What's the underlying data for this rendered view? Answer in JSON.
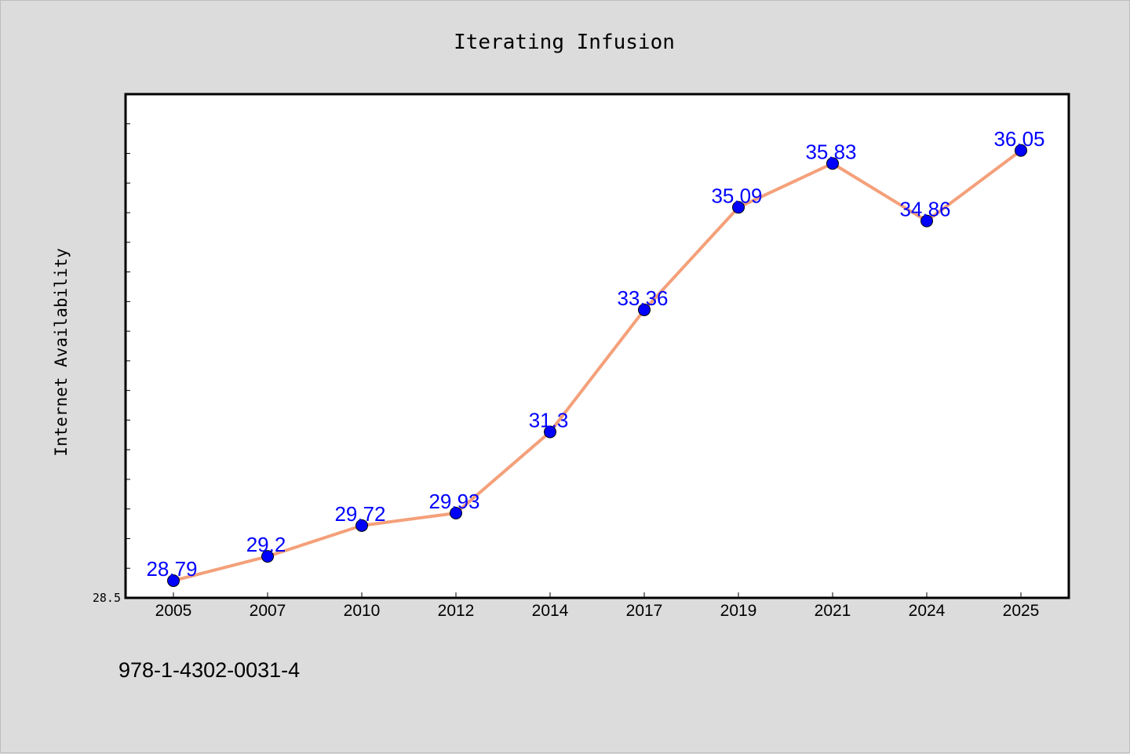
{
  "chart_data": {
    "type": "line",
    "title": "Iterating Infusion",
    "xlabel": "",
    "ylabel": "Internet Availability",
    "categories": [
      "2005",
      "2007",
      "2010",
      "2012",
      "2014",
      "2017",
      "2019",
      "2021",
      "2024",
      "2025"
    ],
    "values": [
      28.79,
      29.2,
      29.72,
      29.93,
      31.3,
      33.36,
      35.09,
      35.83,
      34.86,
      36.05
    ],
    "data_labels": [
      "28.79",
      "29.2",
      "29.72",
      "29.93",
      "31.3",
      "33.36",
      "35.09",
      "35.83",
      "34.86",
      "36.05"
    ],
    "ylim": [
      28.5,
      37
    ],
    "ytick_labels": [
      "28.5"
    ],
    "grid": false,
    "line_color": "#f4a07a",
    "marker_color": "#0000ff",
    "label_color": "#0000ff"
  },
  "footer": {
    "isbn": "978-1-4302-0031-4"
  }
}
